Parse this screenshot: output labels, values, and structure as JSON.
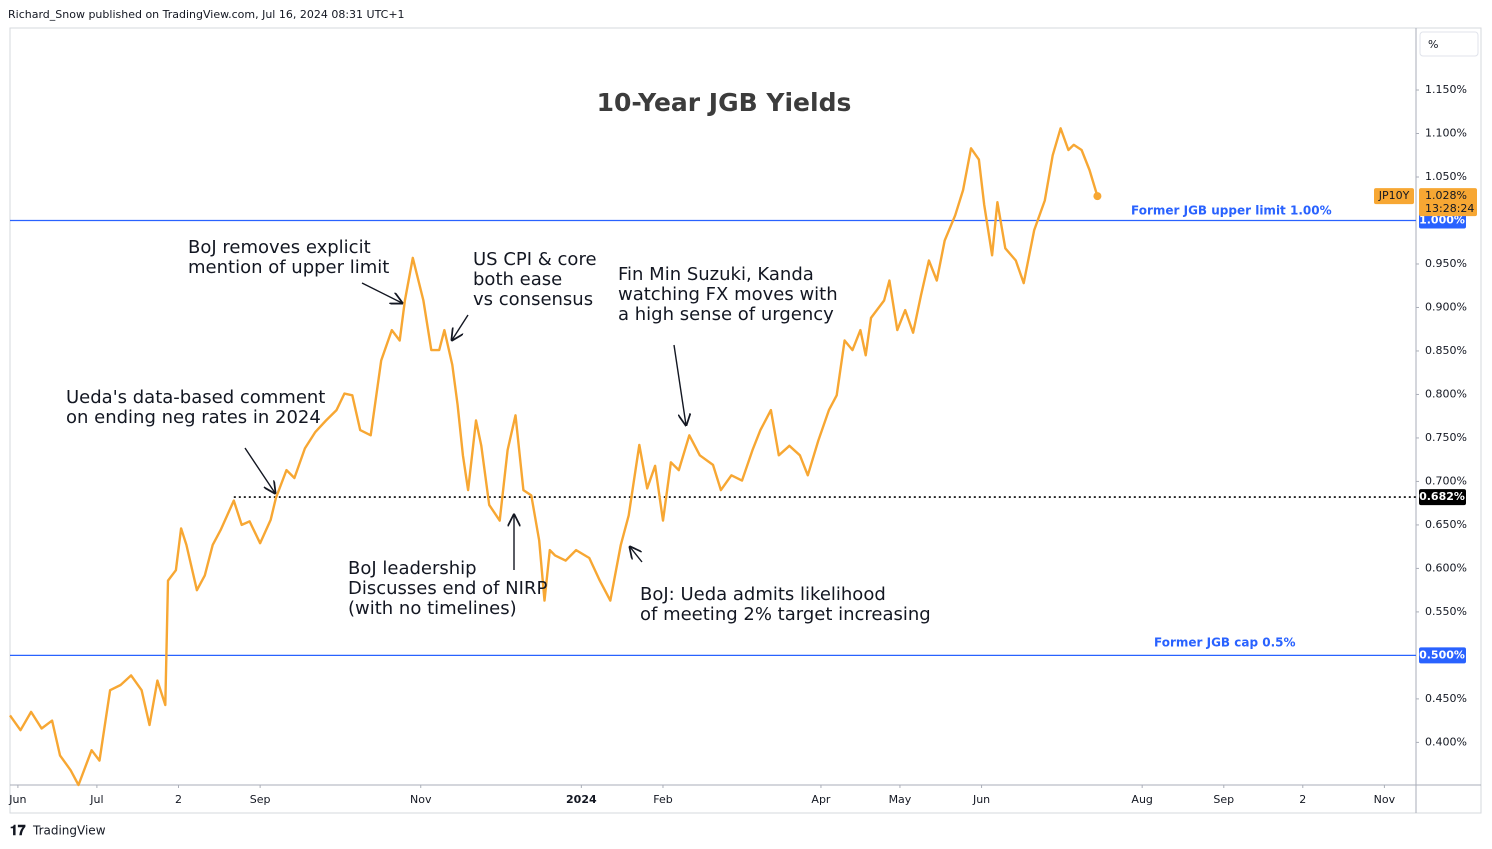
{
  "header": "Richard_Snow published on TradingView.com, Jul 16, 2024 08:31 UTC+1",
  "footer": "TradingView",
  "chart_data": {
    "type": "line",
    "title": "10-Year JGB Yields",
    "axis_unit": "%",
    "grid": false,
    "series": [
      {
        "name": "JP10Y",
        "color": "#f7a733",
        "x": [
          -3,
          1,
          5,
          9,
          13,
          16,
          20,
          23,
          28,
          31,
          35,
          39,
          43,
          47,
          50,
          53,
          56,
          57,
          60,
          62,
          64,
          68,
          71,
          74,
          77,
          82,
          85,
          88,
          92,
          96,
          98,
          102,
          105,
          109,
          113,
          117,
          121,
          124,
          127,
          130,
          134,
          138,
          142,
          145,
          147,
          150,
          154,
          157,
          160,
          162,
          165,
          167,
          169,
          171,
          174,
          176,
          179,
          183,
          186,
          189,
          192,
          195,
          198,
          200,
          202,
          204,
          208,
          212,
          217,
          221,
          225,
          229,
          232,
          236,
          239,
          242,
          245,
          248,
          251,
          255,
          259,
          264,
          267,
          271,
          275,
          279,
          282,
          286,
          289,
          293,
          297,
          300,
          304,
          308,
          311,
          314,
          317,
          320,
          322,
          324,
          329,
          331,
          334,
          337,
          340,
          343,
          346,
          349,
          352,
          356,
          359,
          362,
          365,
          367,
          370,
          372,
          375,
          379,
          382,
          386,
          390,
          393,
          396,
          399,
          401,
          404,
          407,
          410
        ],
        "values": [
          0.431,
          0.414,
          0.435,
          0.416,
          0.425,
          0.385,
          0.368,
          0.351,
          0.391,
          0.379,
          0.46,
          0.466,
          0.477,
          0.46,
          0.42,
          0.471,
          0.443,
          0.586,
          0.598,
          0.646,
          0.627,
          0.575,
          0.592,
          0.627,
          0.644,
          0.678,
          0.65,
          0.654,
          0.629,
          0.656,
          0.681,
          0.713,
          0.704,
          0.738,
          0.757,
          0.77,
          0.782,
          0.801,
          0.799,
          0.759,
          0.753,
          0.839,
          0.874,
          0.862,
          0.908,
          0.957,
          0.908,
          0.851,
          0.851,
          0.874,
          0.834,
          0.788,
          0.73,
          0.69,
          0.77,
          0.741,
          0.673,
          0.655,
          0.736,
          0.776,
          0.69,
          0.684,
          0.632,
          0.563,
          0.621,
          0.615,
          0.609,
          0.621,
          0.612,
          0.586,
          0.563,
          0.627,
          0.661,
          0.742,
          0.692,
          0.718,
          0.655,
          0.722,
          0.713,
          0.753,
          0.73,
          0.719,
          0.69,
          0.707,
          0.701,
          0.736,
          0.759,
          0.782,
          0.73,
          0.741,
          0.73,
          0.707,
          0.747,
          0.782,
          0.799,
          0.862,
          0.851,
          0.874,
          0.845,
          0.888,
          0.908,
          0.931,
          0.874,
          0.897,
          0.871,
          0.914,
          0.954,
          0.931,
          0.977,
          1.006,
          1.035,
          1.083,
          1.07,
          1.018,
          0.96,
          1.021,
          0.968,
          0.954,
          0.928,
          0.989,
          1.023,
          1.075,
          1.106,
          1.081,
          1.087,
          1.081,
          1.058,
          1.028
        ],
        "last_label": {
          "value": 1.028,
          "label": "1.028%"
        },
        "countdown": "13:28:24"
      }
    ],
    "xlim": [
      -3,
      531
    ],
    "xticks": [
      {
        "value": 0,
        "label": "Jun"
      },
      {
        "value": 30,
        "label": "Jul"
      },
      {
        "value": 61,
        "label": "2"
      },
      {
        "value": 92,
        "label": "Sep"
      },
      {
        "value": 153,
        "label": "Nov"
      },
      {
        "value": 214,
        "label": "2024"
      },
      {
        "value": 245,
        "label": "Feb"
      },
      {
        "value": 305,
        "label": "Apr"
      },
      {
        "value": 335,
        "label": "May"
      },
      {
        "value": 366,
        "label": "Jun"
      },
      {
        "value": 427,
        "label": "Aug"
      },
      {
        "value": 458,
        "label": "Sep"
      },
      {
        "value": 488,
        "label": "2"
      },
      {
        "value": 519,
        "label": "Nov"
      }
    ],
    "ylim": [
      0.351,
      1.219
    ],
    "yticks": [
      {
        "value": 0.4,
        "label": "0.400%"
      },
      {
        "value": 0.45,
        "label": "0.450%"
      },
      {
        "value": 0.55,
        "label": "0.550%"
      },
      {
        "value": 0.6,
        "label": "0.600%"
      },
      {
        "value": 0.65,
        "label": "0.650%"
      },
      {
        "value": 0.7,
        "label": "0.700%"
      },
      {
        "value": 0.75,
        "label": "0.750%"
      },
      {
        "value": 0.8,
        "label": "0.800%"
      },
      {
        "value": 0.85,
        "label": "0.850%"
      },
      {
        "value": 0.9,
        "label": "0.900%"
      },
      {
        "value": 0.95,
        "label": "0.950%"
      },
      {
        "value": 1.05,
        "label": "1.050%"
      },
      {
        "value": 1.1,
        "label": "1.100%"
      },
      {
        "value": 1.15,
        "label": "1.150%"
      }
    ],
    "reference_lines": [
      {
        "value": 1.0,
        "label": "1.000%",
        "text": "Former JGB upper limit 1.00%",
        "color": "#2962ff",
        "style": "solid"
      },
      {
        "value": 0.5,
        "label": "0.500%",
        "text": "Former JGB cap 0.5%",
        "color": "#2962ff",
        "style": "solid"
      },
      {
        "value": 0.682,
        "label": "0.682%",
        "color": "#000000",
        "style": "dotted",
        "x0": 82
      }
    ],
    "annotations": [
      {
        "lines": [
          "BoJ removes explicit",
          "mention of upper limit"
        ]
      },
      {
        "lines": [
          "US CPI & core",
          "both ease",
          "vs consensus"
        ]
      },
      {
        "lines": [
          "Fin Min Suzuki, Kanda",
          "watching FX moves with",
          "a high sense of urgency"
        ]
      },
      {
        "lines": [
          "Ueda's data-based comment",
          "on ending neg rates in 2024"
        ]
      },
      {
        "lines": [
          "BoJ leadership",
          "Discusses end of NIRP",
          "(with no timelines)"
        ]
      },
      {
        "lines": [
          "BoJ: Ueda admits likelihood",
          "of meeting 2% target increasing"
        ]
      }
    ]
  }
}
